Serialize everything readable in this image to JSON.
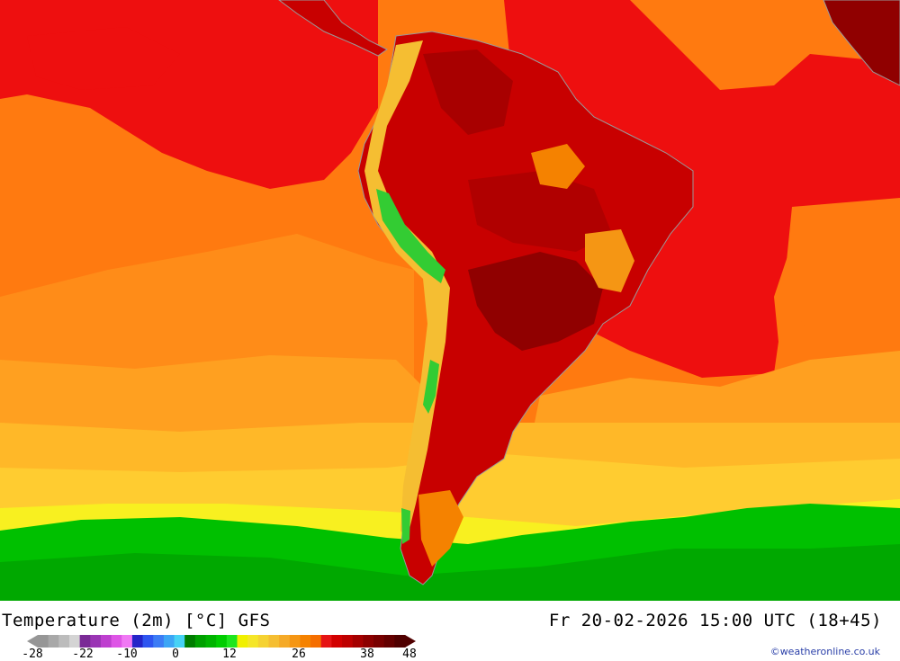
{
  "map": {
    "title": "Temperature (2m) [°C] GFS",
    "valid_time": "Fr 20-02-2026 15:00 UTC (18+45)",
    "credit": "©weatheronline.co.uk",
    "region": "South America",
    "colors": {
      "ocean_warm_red": "#ee0f0f",
      "ocean_orange": "#ff7a10",
      "ocean_amber": "#ffa020",
      "ocean_yellow": "#f8f020",
      "cold_green": "#00c000",
      "land_hot": "#c00000",
      "land_hottest": "#900000",
      "andes_green": "#33cc33",
      "coastline": "#999999"
    }
  },
  "legend": {
    "tick_labels": [
      "-28",
      "-22",
      "-10",
      "0",
      "12",
      "26",
      "38",
      "48"
    ],
    "tick_values": [
      -28,
      -22,
      -10,
      0,
      12,
      26,
      38,
      48
    ],
    "range": [
      -28,
      48
    ],
    "colors": [
      "#969696",
      "#a8a8a8",
      "#bcbcbc",
      "#d4d4d4",
      "#7a2a96",
      "#9a35b4",
      "#be3fcf",
      "#de55e6",
      "#f078f4",
      "#2424c8",
      "#2e55f0",
      "#3c7cf5",
      "#3ca5f5",
      "#46d2f5",
      "#007d00",
      "#00a000",
      "#00b400",
      "#00cd00",
      "#1ee61e",
      "#f0f000",
      "#f5e628",
      "#f5d232",
      "#f5be32",
      "#f5aa28",
      "#f59614",
      "#f58200",
      "#f56e00",
      "#e61414",
      "#d20000",
      "#be0000",
      "#a50000",
      "#8c0000",
      "#780000",
      "#640000",
      "#500000"
    ]
  }
}
